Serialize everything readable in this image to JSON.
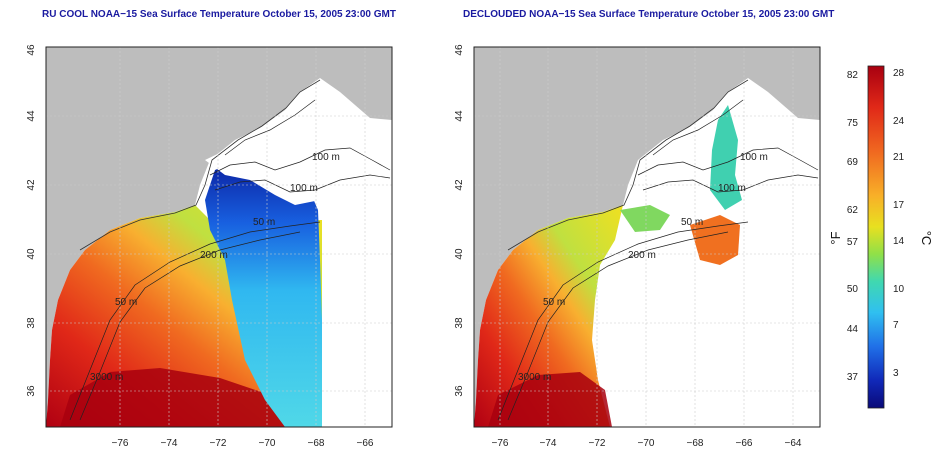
{
  "left_panel": {
    "title": "RU COOL NOAA−15 Sea Surface Temperature October 15, 2005 23:00 GMT",
    "contours": [
      "100 m",
      "100 m",
      "50 m",
      "200 m",
      "50 m",
      "3000 m"
    ]
  },
  "right_panel": {
    "title": "DECLOUDED NOAA−15 Sea Surface Temperature October 15, 2005 23:00 GMT",
    "contours": [
      "100 m",
      "100 m",
      "50 m",
      "200 m",
      "50 m",
      "3000 m"
    ]
  },
  "axes": {
    "x_ticks": [
      "−76",
      "−74",
      "−72",
      "−70",
      "−68",
      "−66",
      "−64"
    ],
    "y_ticks": [
      "36",
      "38",
      "40",
      "42",
      "44",
      "46"
    ],
    "x_range": [
      -77.2,
      -62.7
    ],
    "y_range": [
      35,
      46
    ]
  },
  "colorbar": {
    "f_ticks": [
      "82",
      "75",
      "69",
      "62",
      "57",
      "50",
      "44",
      "37"
    ],
    "c_ticks": [
      "28",
      "24",
      "21",
      "17",
      "14",
      "10",
      "7",
      "3"
    ],
    "f_label": "°F",
    "c_label": "°C",
    "colors": [
      "#b00010",
      "#e83018",
      "#f06820",
      "#f8a828",
      "#f0e020",
      "#a0e040",
      "#40d8a0",
      "#30c8f0",
      "#2080f0",
      "#1030c0",
      "#0a0a80"
    ]
  }
}
